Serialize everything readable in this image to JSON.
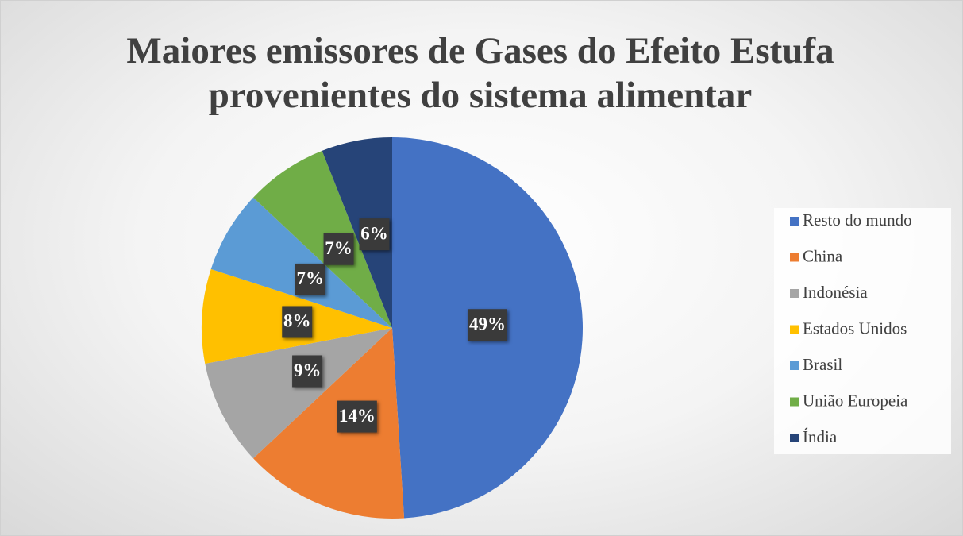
{
  "chart_data": {
    "type": "pie",
    "title": "Maiores emissores de Gases do Efeito Estufa provenientes do sistema alimentar",
    "categories": [
      "Resto do mundo",
      "China",
      "Indonésia",
      "Estados Unidos",
      "Brasil",
      "União Europeia",
      "Índia"
    ],
    "values": [
      49,
      14,
      9,
      8,
      7,
      7,
      6
    ],
    "value_labels": [
      "49%",
      "14%",
      "9%",
      "8%",
      "7%",
      "7%",
      "6%"
    ],
    "colors": [
      "#4472c4",
      "#ed7d31",
      "#a5a5a5",
      "#ffc000",
      "#5b9bd5",
      "#70ad47",
      "#264478"
    ],
    "legend": "right"
  }
}
